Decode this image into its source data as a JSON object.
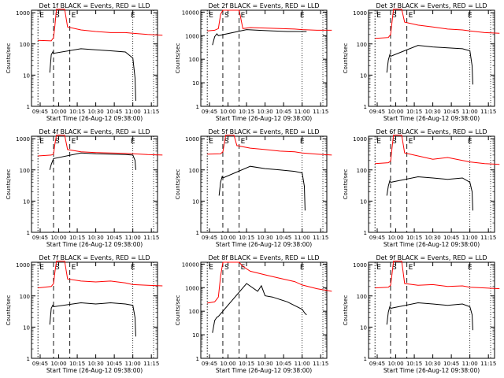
{
  "figure": {
    "panel_title_suffix": "BLACK = Events, RED = LLD",
    "xlabel": "Start Time (26-Aug-12 09:38:00)",
    "ylabel": "Counts/sec",
    "colors": {
      "events": "#000000",
      "lld": "#ff0000",
      "axes": "#000000"
    }
  },
  "chart_data": [
    {
      "type": "line",
      "title": "Det 1f BLACK = Events, RED = LLD",
      "x_ticks": [
        "09:45",
        "10:00",
        "10:15",
        "10:30",
        "10:45",
        "11:00",
        "11:15"
      ],
      "y_ticks": [
        "1",
        "10",
        "100",
        "1000"
      ],
      "ylim": [
        1,
        1200
      ],
      "y_scale": "log",
      "markers": [
        "E",
        "S",
        "E"
      ],
      "series": [
        {
          "kind": "events",
          "x": [
            9.88,
            9.9,
            9.92,
            9.93,
            10.3,
            10.5,
            10.7,
            10.9,
            11.0,
            11.03,
            11.04
          ],
          "values": [
            12,
            45,
            55,
            50,
            70,
            65,
            60,
            55,
            35,
            8,
            1.5
          ]
        },
        {
          "kind": "lld",
          "x": [
            9.72,
            9.9,
            9.93,
            9.95,
            9.97,
            10.08,
            10.12,
            10.3,
            10.5,
            10.7,
            10.9,
            11.0,
            11.2,
            11.4
          ],
          "values": [
            130,
            125,
            160,
            400,
            1300,
            1300,
            350,
            280,
            250,
            230,
            230,
            220,
            200,
            190
          ]
        }
      ]
    },
    {
      "type": "line",
      "title": "Det 2f BLACK = Events, RED = LLD",
      "x_ticks": [
        "09:45",
        "10:00",
        "10:15",
        "10:30",
        "10:45",
        "11:00",
        "11:15"
      ],
      "y_ticks": [
        "1",
        "10",
        "100",
        "1000",
        "10000"
      ],
      "ylim": [
        1,
        12000
      ],
      "y_scale": "log",
      "markers": [
        "E",
        "S",
        "E"
      ],
      "series": [
        {
          "kind": "events",
          "x": [
            9.79,
            9.82,
            9.85,
            9.87,
            10.25,
            10.4,
            10.6,
            10.8,
            11.0,
            11.04,
            11.06
          ],
          "values": [
            400,
            900,
            1200,
            1000,
            1800,
            1700,
            1600,
            1500,
            1500,
            1500,
            1500
          ]
        },
        {
          "kind": "lld",
          "x": [
            9.72,
            9.82,
            9.87,
            9.9,
            9.93,
            10.15,
            10.2,
            10.3,
            10.5,
            10.7,
            10.9,
            11.0,
            11.2,
            11.4
          ],
          "values": [
            1600,
            1700,
            2000,
            8000,
            12000,
            12000,
            2000,
            2200,
            2100,
            2000,
            1900,
            1800,
            1700,
            1700
          ]
        }
      ]
    },
    {
      "type": "line",
      "title": "Det 3f BLACK = Events, RED = LLD",
      "x_ticks": [
        "09:45",
        "10:00",
        "10:15",
        "10:30",
        "10:45",
        "11:00",
        "11:15"
      ],
      "y_ticks": [
        "1",
        "10",
        "100",
        "1000"
      ],
      "ylim": [
        1,
        1200
      ],
      "y_scale": "log",
      "markers": [
        "E",
        "S",
        "E"
      ],
      "series": [
        {
          "kind": "events",
          "x": [
            9.88,
            9.9,
            9.92,
            9.93,
            10.3,
            10.5,
            10.7,
            10.9,
            11.0,
            11.03,
            11.04
          ],
          "values": [
            12,
            30,
            45,
            40,
            90,
            80,
            75,
            70,
            60,
            20,
            5
          ]
        },
        {
          "kind": "lld",
          "x": [
            9.72,
            9.9,
            9.93,
            9.95,
            9.97,
            10.08,
            10.12,
            10.3,
            10.5,
            10.7,
            10.9,
            11.0,
            11.2,
            11.4
          ],
          "values": [
            150,
            160,
            200,
            500,
            1300,
            1300,
            500,
            400,
            350,
            300,
            280,
            260,
            230,
            220
          ]
        }
      ]
    },
    {
      "type": "line",
      "title": "Det 4f BLACK = Events, RED = LLD",
      "x_ticks": [
        "09:45",
        "10:00",
        "10:15",
        "10:30",
        "10:45",
        "11:00",
        "11:15"
      ],
      "y_ticks": [
        "1",
        "10",
        "100",
        "1000"
      ],
      "ylim": [
        1,
        1200
      ],
      "y_scale": "log",
      "markers": [
        "E",
        "S",
        "E"
      ],
      "series": [
        {
          "kind": "events",
          "x": [
            9.88,
            9.9,
            9.92,
            9.93,
            10.3,
            10.5,
            10.7,
            10.9,
            11.0,
            11.03,
            11.04
          ],
          "values": [
            100,
            150,
            200,
            230,
            350,
            330,
            320,
            310,
            300,
            200,
            100
          ]
        },
        {
          "kind": "lld",
          "x": [
            9.72,
            9.9,
            9.93,
            9.95,
            9.97,
            10.08,
            10.12,
            10.3,
            10.5,
            10.7,
            10.9,
            11.0,
            11.2,
            11.4
          ],
          "values": [
            280,
            300,
            320,
            700,
            1300,
            1300,
            450,
            380,
            360,
            350,
            340,
            330,
            310,
            300
          ]
        }
      ]
    },
    {
      "type": "line",
      "title": "Det 5f BLACK = Events, RED = LLD",
      "x_ticks": [
        "09:45",
        "10:00",
        "10:15",
        "10:30",
        "10:45",
        "11:00",
        "11:15"
      ],
      "y_ticks": [
        "1",
        "10",
        "100",
        "1000"
      ],
      "ylim": [
        1,
        1200
      ],
      "y_scale": "log",
      "markers": [
        "E",
        "S",
        "E"
      ],
      "series": [
        {
          "kind": "events",
          "x": [
            9.88,
            9.9,
            9.92,
            9.93,
            10.3,
            10.5,
            10.7,
            10.9,
            11.0,
            11.03,
            11.04
          ],
          "values": [
            15,
            40,
            60,
            55,
            130,
            110,
            100,
            90,
            80,
            30,
            5
          ]
        },
        {
          "kind": "lld",
          "x": [
            9.72,
            9.9,
            9.93,
            9.95,
            9.97,
            10.08,
            10.12,
            10.3,
            10.5,
            10.7,
            10.9,
            11.0,
            11.2,
            11.4
          ],
          "values": [
            320,
            330,
            380,
            700,
            1300,
            1300,
            600,
            500,
            450,
            400,
            380,
            350,
            320,
            300
          ]
        }
      ]
    },
    {
      "type": "line",
      "title": "Det 6f BLACK = Events, RED = LLD",
      "x_ticks": [
        "09:45",
        "10:00",
        "10:15",
        "10:30",
        "10:45",
        "11:00",
        "11:15"
      ],
      "y_ticks": [
        "1",
        "10",
        "100",
        "1000"
      ],
      "ylim": [
        1,
        1200
      ],
      "y_scale": "log",
      "markers": [
        "E",
        "S",
        "E"
      ],
      "series": [
        {
          "kind": "events",
          "x": [
            9.88,
            9.9,
            9.92,
            9.93,
            10.3,
            10.5,
            10.7,
            10.9,
            11.0,
            11.03,
            11.04
          ],
          "values": [
            15,
            30,
            45,
            40,
            60,
            55,
            50,
            55,
            40,
            20,
            5
          ]
        },
        {
          "kind": "lld",
          "x": [
            9.72,
            9.9,
            9.93,
            9.95,
            9.97,
            10.08,
            10.12,
            10.3,
            10.5,
            10.7,
            10.9,
            11.0,
            11.2,
            11.4
          ],
          "values": [
            160,
            170,
            190,
            500,
            1300,
            1300,
            350,
            280,
            220,
            250,
            200,
            180,
            160,
            150
          ]
        }
      ]
    },
    {
      "type": "line",
      "title": "Det 7f BLACK = Events, RED = LLD",
      "x_ticks": [
        "09:45",
        "10:00",
        "10:15",
        "10:30",
        "10:45",
        "11:00",
        "11:15"
      ],
      "y_ticks": [
        "1",
        "10",
        "100",
        "1000"
      ],
      "ylim": [
        1,
        1200
      ],
      "y_scale": "log",
      "markers": [
        "E",
        "S",
        "E"
      ],
      "series": [
        {
          "kind": "events",
          "x": [
            9.88,
            9.9,
            9.92,
            9.93,
            10.3,
            10.5,
            10.7,
            10.9,
            11.0,
            11.03,
            11.04
          ],
          "values": [
            12,
            40,
            50,
            45,
            60,
            55,
            60,
            55,
            50,
            20,
            5
          ]
        },
        {
          "kind": "lld",
          "x": [
            9.72,
            9.9,
            9.93,
            9.95,
            9.97,
            10.08,
            10.12,
            10.3,
            10.5,
            10.7,
            10.9,
            11.0,
            11.2,
            11.4
          ],
          "values": [
            180,
            200,
            250,
            600,
            1300,
            1300,
            350,
            300,
            280,
            300,
            260,
            230,
            220,
            210
          ]
        }
      ]
    },
    {
      "type": "line",
      "title": "Det 8f BLACK = Events, RED = LLD",
      "x_ticks": [
        "09:45",
        "10:00",
        "10:15",
        "10:30",
        "10:45",
        "11:00",
        "11:15"
      ],
      "y_ticks": [
        "1",
        "10",
        "100",
        "1000",
        "10000"
      ],
      "ylim": [
        1,
        12000
      ],
      "y_scale": "log",
      "markers": [
        "E",
        "S",
        "E"
      ],
      "series": [
        {
          "kind": "events",
          "x": [
            9.79,
            9.82,
            9.85,
            9.87,
            10.25,
            10.4,
            10.45,
            10.5,
            10.6,
            10.8,
            11.0,
            11.04,
            11.06
          ],
          "values": [
            12,
            40,
            55,
            60,
            1500,
            700,
            1200,
            450,
            400,
            250,
            120,
            80,
            70
          ]
        },
        {
          "kind": "lld",
          "x": [
            9.72,
            9.82,
            9.87,
            9.9,
            9.93,
            10.15,
            10.2,
            10.3,
            10.5,
            10.7,
            10.9,
            11.0,
            11.2,
            11.4
          ],
          "values": [
            220,
            250,
            400,
            3000,
            12000,
            12000,
            8000,
            5000,
            3500,
            2500,
            1800,
            1300,
            900,
            700
          ]
        }
      ]
    },
    {
      "type": "line",
      "title": "Det 9f BLACK = Events, RED = LLD",
      "x_ticks": [
        "09:45",
        "10:00",
        "10:15",
        "10:30",
        "10:45",
        "11:00",
        "11:15"
      ],
      "y_ticks": [
        "1",
        "10",
        "100",
        "1000"
      ],
      "ylim": [
        1,
        1200
      ],
      "y_scale": "log",
      "markers": [
        "E",
        "S",
        "E"
      ],
      "series": [
        {
          "kind": "events",
          "x": [
            9.88,
            9.9,
            9.92,
            9.93,
            10.3,
            10.5,
            10.7,
            10.9,
            11.0,
            11.03,
            11.04
          ],
          "values": [
            12,
            30,
            45,
            40,
            60,
            55,
            50,
            55,
            45,
            25,
            8
          ]
        },
        {
          "kind": "lld",
          "x": [
            9.72,
            9.9,
            9.93,
            9.95,
            9.97,
            10.08,
            10.12,
            10.3,
            10.5,
            10.7,
            10.9,
            11.0,
            11.2,
            11.4
          ],
          "values": [
            180,
            190,
            220,
            500,
            1300,
            1300,
            250,
            220,
            230,
            200,
            210,
            190,
            180,
            170
          ]
        }
      ]
    }
  ]
}
